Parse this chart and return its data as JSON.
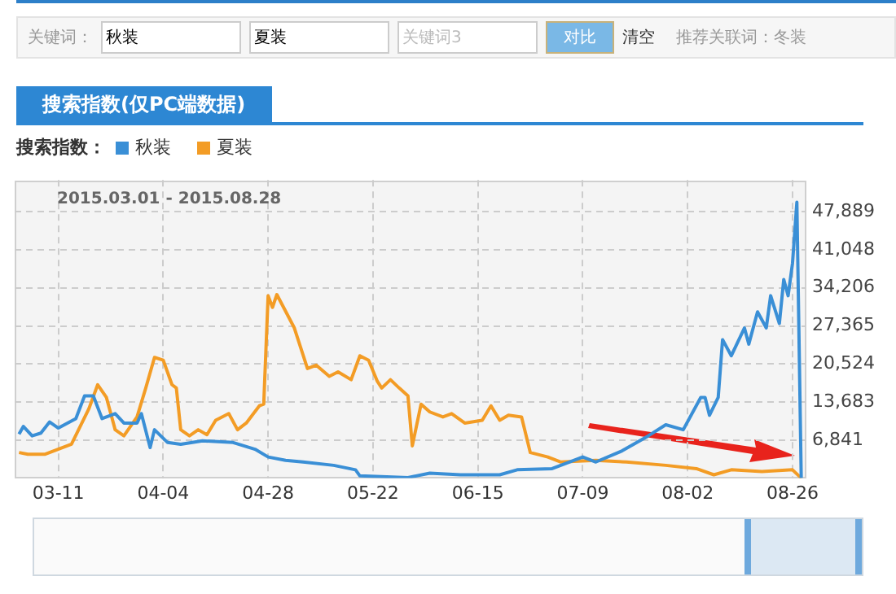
{
  "chart_data": {
    "type": "line",
    "title": "搜索指数(仅PC端数据)",
    "legend_title": "搜索指数：",
    "legend": "top left",
    "grid": true,
    "line_style": "solid",
    "marker": "none",
    "annotations": [
      "2015.03.01 - 2015.08.28",
      "关键词：",
      "秋装",
      "夏装",
      "关键词3",
      "对比",
      "清空",
      "推荐关联词：冬装"
    ],
    "xlim": [
      "2015-03-01",
      "2015-08-29"
    ],
    "xticks": [
      {
        "value": "2015-03-11",
        "label": "03-11"
      },
      {
        "value": "2015-04-04",
        "label": "04-04"
      },
      {
        "value": "2015-04-28",
        "label": "04-28"
      },
      {
        "value": "2015-05-22",
        "label": "05-22"
      },
      {
        "value": "2015-06-15",
        "label": "06-15"
      },
      {
        "value": "2015-07-09",
        "label": "07-09"
      },
      {
        "value": "2015-08-02",
        "label": "08-02"
      },
      {
        "value": "2015-08-26",
        "label": "08-26"
      }
    ],
    "ylim": [
      0,
      53600
    ],
    "yticks": [
      {
        "value": 6841,
        "label": "6,841"
      },
      {
        "value": 13683,
        "label": "13,683"
      },
      {
        "value": 20524,
        "label": "20,524"
      },
      {
        "value": 27365,
        "label": "27,365"
      },
      {
        "value": 34206,
        "label": "34,206"
      },
      {
        "value": 41048,
        "label": "41,048"
      },
      {
        "value": 47889,
        "label": "47,889"
      }
    ],
    "series": [
      {
        "name": "秋装",
        "color": "#3a8fd6",
        "x": [
          "2015-03-02",
          "2015-03-03",
          "2015-03-05",
          "2015-03-07",
          "2015-03-09",
          "2015-03-11",
          "2015-03-15",
          "2015-03-17",
          "2015-03-19",
          "2015-03-21",
          "2015-03-24",
          "2015-03-26",
          "2015-03-29",
          "2015-03-30",
          "2015-04-01",
          "2015-04-02",
          "2015-04-05",
          "2015-04-08",
          "2015-04-13",
          "2015-04-20",
          "2015-04-25",
          "2015-04-28",
          "2015-05-02",
          "2015-05-06",
          "2015-05-13",
          "2015-05-18",
          "2015-05-19",
          "2015-05-30",
          "2015-06-04",
          "2015-06-11",
          "2015-06-20",
          "2015-06-24",
          "2015-07-02",
          "2015-07-09",
          "2015-07-12",
          "2015-07-18",
          "2015-07-24",
          "2015-07-28",
          "2015-08-01",
          "2015-08-05",
          "2015-08-06",
          "2015-08-07",
          "2015-08-09",
          "2015-08-10",
          "2015-08-12",
          "2015-08-15",
          "2015-08-16",
          "2015-08-18",
          "2015-08-20",
          "2015-08-21",
          "2015-08-23",
          "2015-08-24",
          "2015-08-25",
          "2015-08-26",
          "2015-08-27",
          "2015-08-28"
        ],
        "values": [
          7900,
          9300,
          7600,
          8100,
          10100,
          9000,
          10700,
          14800,
          14800,
          10700,
          11600,
          9900,
          9900,
          11600,
          5500,
          8700,
          6400,
          6100,
          6700,
          6400,
          5200,
          3800,
          3200,
          2900,
          2300,
          1500,
          400,
          100,
          900,
          600,
          600,
          1500,
          1700,
          3800,
          2900,
          4900,
          7600,
          9600,
          8700,
          14500,
          14500,
          11300,
          14500,
          24900,
          22000,
          27000,
          24100,
          29900,
          27000,
          32800,
          27800,
          35700,
          32800,
          38600,
          49600,
          0
        ]
      },
      {
        "name": "夏装",
        "color": "#f39c25",
        "x": [
          "2015-03-02",
          "2015-03-04",
          "2015-03-08",
          "2015-03-14",
          "2015-03-18",
          "2015-03-20",
          "2015-03-22",
          "2015-03-24",
          "2015-03-26",
          "2015-03-29",
          "2015-03-31",
          "2015-04-02",
          "2015-04-04",
          "2015-04-06",
          "2015-04-07",
          "2015-04-08",
          "2015-04-10",
          "2015-04-12",
          "2015-04-14",
          "2015-04-16",
          "2015-04-19",
          "2015-04-21",
          "2015-04-23",
          "2015-04-26",
          "2015-04-27",
          "2015-04-28",
          "2015-04-29",
          "2015-04-30",
          "2015-05-04",
          "2015-05-07",
          "2015-05-09",
          "2015-05-12",
          "2015-05-14",
          "2015-05-17",
          "2015-05-19",
          "2015-05-21",
          "2015-05-23",
          "2015-05-24",
          "2015-05-26",
          "2015-05-28",
          "2015-05-30",
          "2015-05-31",
          "2015-06-02",
          "2015-06-04",
          "2015-06-07",
          "2015-06-09",
          "2015-06-12",
          "2015-06-16",
          "2015-06-18",
          "2015-06-20",
          "2015-06-22",
          "2015-06-25",
          "2015-06-27",
          "2015-07-01",
          "2015-07-04",
          "2015-07-12",
          "2015-07-19",
          "2015-07-28",
          "2015-08-04",
          "2015-08-08",
          "2015-08-12",
          "2015-08-19",
          "2015-08-26",
          "2015-08-28"
        ],
        "values": [
          4600,
          4300,
          4300,
          6100,
          12500,
          16800,
          14500,
          8700,
          7600,
          11000,
          16200,
          21700,
          21200,
          16800,
          16200,
          8700,
          7600,
          8700,
          7800,
          10400,
          11600,
          8700,
          9900,
          13000,
          13300,
          32800,
          30700,
          33000,
          27000,
          19700,
          20300,
          18300,
          19100,
          17700,
          22000,
          21200,
          17400,
          16200,
          17700,
          16200,
          14800,
          5800,
          13300,
          11900,
          11000,
          11600,
          9900,
          10400,
          13000,
          10400,
          11300,
          11000,
          4600,
          3800,
          2900,
          3200,
          2900,
          2300,
          1700,
          600,
          1500,
          1200,
          1500,
          0
        ]
      }
    ]
  }
}
